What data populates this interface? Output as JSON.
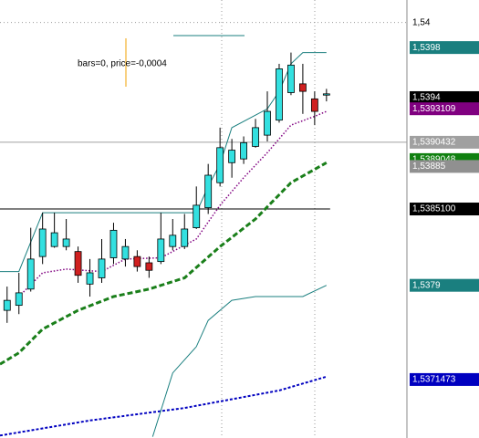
{
  "chart_data": {
    "type": "candlestick",
    "annotation": "bars=0, price=-0,0004",
    "ylim": [
      1.53668,
      1.54018
    ],
    "xlim": [
      -0.6,
      33.8
    ],
    "yticks": [
      {
        "value": 1.54,
        "label": "1,54"
      }
    ],
    "up_color": "#33e0e0",
    "down_color": "#d02020",
    "open": [
      1.5377,
      1.53774,
      1.53787,
      1.53813,
      1.53821,
      1.53821,
      1.53817,
      1.53791,
      1.53796,
      1.53812,
      1.53811,
      1.53813,
      1.53808,
      1.53809,
      1.53821,
      1.53821,
      1.53836,
      1.53852,
      1.53872,
      1.53888,
      1.53891,
      1.53901,
      1.5391,
      1.53922,
      1.53944,
      1.53951,
      1.53939,
      1.53942
    ],
    "high": [
      1.53789,
      1.538,
      1.53836,
      1.53848,
      1.53848,
      1.53843,
      1.53821,
      1.53811,
      1.53827,
      1.5384,
      1.53827,
      1.53818,
      1.53813,
      1.53848,
      1.53843,
      1.53847,
      1.53869,
      1.53887,
      1.53916,
      1.53907,
      1.53909,
      1.53923,
      1.53945,
      1.53967,
      1.53976,
      1.53967,
      1.53945,
      1.53947
    ],
    "low": [
      1.5376,
      1.53767,
      1.53785,
      1.53807,
      1.5382,
      1.53818,
      1.53792,
      1.53781,
      1.53792,
      1.53807,
      1.53805,
      1.53801,
      1.53796,
      1.53807,
      1.53818,
      1.53819,
      1.53835,
      1.53847,
      1.53869,
      1.53876,
      1.53887,
      1.539,
      1.53905,
      1.5392,
      1.53942,
      1.53927,
      1.53918,
      1.53937
    ],
    "close": [
      1.53778,
      1.53784,
      1.53811,
      1.53835,
      1.53832,
      1.53827,
      1.53798,
      1.538,
      1.53811,
      1.53834,
      1.53821,
      1.53805,
      1.53802,
      1.53827,
      1.5383,
      1.53835,
      1.53854,
      1.53878,
      1.539,
      1.53898,
      1.53904,
      1.53916,
      1.53929,
      1.53963,
      1.53966,
      1.53945,
      1.53929,
      1.53943
    ],
    "lines": [
      {
        "color": "#800080",
        "style": "dotted",
        "x": [
          1,
          3,
          5,
          8,
          10,
          13,
          16,
          18,
          20,
          22,
          24,
          26,
          27
        ],
        "values": [
          1.53781,
          1.538,
          1.53803,
          1.53801,
          1.53811,
          1.53812,
          1.53827,
          1.53854,
          1.53876,
          1.53896,
          1.53918,
          1.53925,
          1.53929
        ]
      },
      {
        "color": "#1a7f1a",
        "style": "dashed",
        "x": [
          -0.6,
          1,
          3,
          6,
          9,
          12,
          15,
          18,
          21,
          24,
          27
        ],
        "values": [
          1.53727,
          1.53736,
          1.53755,
          1.5377,
          1.53781,
          1.53787,
          1.53796,
          1.53821,
          1.53843,
          1.53872,
          1.53888
        ]
      },
      {
        "color": "#0000c0",
        "style": "dashdot",
        "x": [
          -0.6,
          7,
          15,
          23,
          27
        ],
        "values": [
          1.5367,
          1.53682,
          1.53692,
          1.53706,
          1.53717
        ]
      },
      {
        "color": "#1a7f7f",
        "style": "solid",
        "x": [
          -0.6,
          1,
          3,
          16,
          17,
          18,
          19,
          22,
          23,
          24,
          25,
          27
        ],
        "values": [
          1.53801,
          1.53801,
          1.53848,
          1.53848,
          1.53869,
          1.53887,
          1.53916,
          1.53931,
          1.53945,
          1.53967,
          1.53976,
          1.53976
        ]
      },
      {
        "color": "#1a7f7f",
        "style": "solid",
        "x": [
          12.3,
          14,
          16,
          17,
          19,
          21,
          25,
          27
        ],
        "values": [
          1.53669,
          1.5372,
          1.53741,
          1.53762,
          1.53778,
          1.53781,
          1.53781,
          1.5379
        ]
      }
    ],
    "price_tags": [
      {
        "label": "1,5398",
        "value": 1.5398,
        "color": "#1a7f7f"
      },
      {
        "label": "1,5394",
        "value": 1.5394,
        "color": "#000000"
      },
      {
        "label": "1,5393109",
        "value": 1.5393109,
        "color": "#800080"
      },
      {
        "label": "1,5390432",
        "value": 1.5390432,
        "color": "#a0a0a0",
        "line": "full"
      },
      {
        "label": "1,5389048",
        "value": 1.5389048,
        "color": "#108010"
      },
      {
        "label": "1,53885",
        "value": 1.53885,
        "color": "#909090"
      },
      {
        "label": "1,5385100",
        "value": 1.53851,
        "color": "#000000",
        "line": "candles"
      },
      {
        "label": "1,5379",
        "value": 1.5379,
        "color": "#1a7f7f"
      },
      {
        "label": "1,5371473",
        "value": 1.5371473,
        "color": "#0000c0"
      }
    ]
  }
}
